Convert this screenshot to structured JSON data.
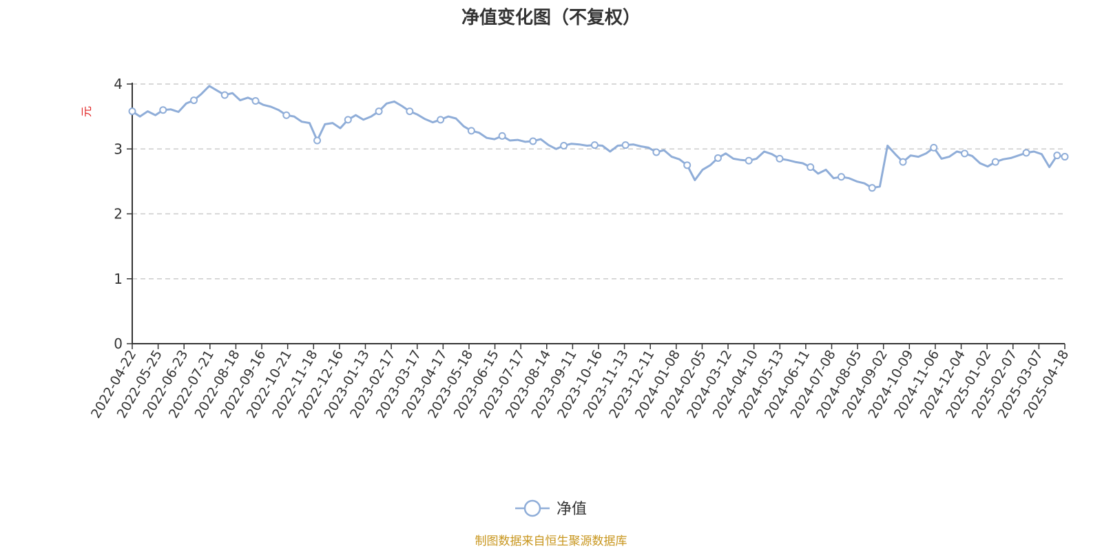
{
  "chart_data": {
    "type": "line",
    "title": "净值变化图（不复权）",
    "ylabel": "元",
    "ylim": [
      0,
      4
    ],
    "yticks": [
      0,
      1,
      2,
      3,
      4
    ],
    "grid": true,
    "legend_position": "bottom",
    "x_tick_labels": [
      "2022-04-22",
      "2022-05-25",
      "2022-06-23",
      "2022-07-21",
      "2022-08-18",
      "2022-09-16",
      "2022-10-21",
      "2022-11-18",
      "2022-12-16",
      "2023-01-13",
      "2023-02-17",
      "2023-03-17",
      "2023-04-17",
      "2023-05-18",
      "2023-06-15",
      "2023-07-17",
      "2023-08-14",
      "2023-09-11",
      "2023-10-16",
      "2023-11-13",
      "2023-12-11",
      "2024-01-08",
      "2024-02-05",
      "2024-03-12",
      "2024-04-10",
      "2024-05-13",
      "2024-06-11",
      "2024-07-08",
      "2024-08-05",
      "2024-09-02",
      "2024-10-09",
      "2024-11-06",
      "2024-12-04",
      "2025-01-02",
      "2025-02-07",
      "2025-03-07",
      "2025-04-18"
    ],
    "series": [
      {
        "name": "净值",
        "color": "#8fadd8",
        "values": [
          3.58,
          3.5,
          3.58,
          3.52,
          3.6,
          3.61,
          3.57,
          3.7,
          3.75,
          3.85,
          3.97,
          3.9,
          3.83,
          3.86,
          3.75,
          3.79,
          3.74,
          3.68,
          3.65,
          3.6,
          3.52,
          3.5,
          3.42,
          3.4,
          3.13,
          3.38,
          3.4,
          3.32,
          3.45,
          3.52,
          3.45,
          3.5,
          3.58,
          3.7,
          3.73,
          3.66,
          3.58,
          3.53,
          3.46,
          3.41,
          3.45,
          3.5,
          3.47,
          3.35,
          3.28,
          3.25,
          3.17,
          3.15,
          3.2,
          3.13,
          3.14,
          3.11,
          3.12,
          3.15,
          3.06,
          3.0,
          3.05,
          3.08,
          3.07,
          3.05,
          3.06,
          3.05,
          2.96,
          3.05,
          3.06,
          3.07,
          3.04,
          3.02,
          2.95,
          2.98,
          2.88,
          2.84,
          2.75,
          2.52,
          2.68,
          2.75,
          2.86,
          2.93,
          2.85,
          2.83,
          2.82,
          2.85,
          2.96,
          2.92,
          2.85,
          2.83,
          2.8,
          2.78,
          2.72,
          2.62,
          2.68,
          2.55,
          2.57,
          2.55,
          2.5,
          2.47,
          2.4,
          2.42,
          3.05,
          2.92,
          2.8,
          2.9,
          2.88,
          2.93,
          3.02,
          2.85,
          2.88,
          2.96,
          2.93,
          2.89,
          2.78,
          2.73,
          2.8,
          2.84,
          2.86,
          2.9,
          2.94,
          2.96,
          2.92,
          2.72,
          2.9,
          2.88
        ]
      }
    ],
    "markers_every": 4
  },
  "legend": {
    "label": "净值"
  },
  "source": "制图数据来自恒生聚源数据库"
}
